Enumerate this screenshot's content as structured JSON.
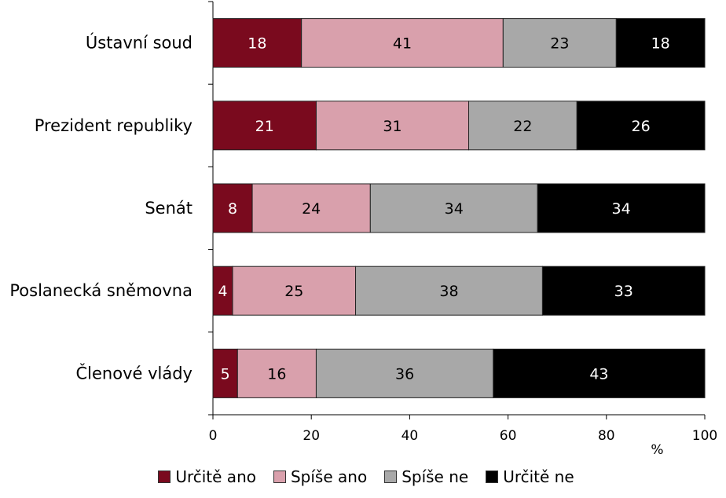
{
  "chart_data": {
    "type": "bar",
    "orientation": "horizontal",
    "stacked": true,
    "categories": [
      "Ústavní soud",
      "Prezident republiky",
      "Senát",
      "Poslanecká sněmovna",
      "Členové vlády"
    ],
    "series": [
      {
        "name": "Určitě ano",
        "color": "#7a0a1e",
        "label_color": "#ffffff",
        "values": [
          18,
          21,
          8,
          4,
          5
        ]
      },
      {
        "name": "Spíše ano",
        "color": "#d9a0ac",
        "label_color": "#000000",
        "values": [
          41,
          31,
          24,
          25,
          16
        ]
      },
      {
        "name": "Spíše ne",
        "color": "#a8a8a8",
        "label_color": "#000000",
        "values": [
          23,
          22,
          34,
          38,
          36
        ]
      },
      {
        "name": "Určitě ne",
        "color": "#000000",
        "label_color": "#ffffff",
        "values": [
          18,
          26,
          34,
          33,
          43
        ]
      }
    ],
    "xlim": [
      0,
      100
    ],
    "xticks": [
      "0",
      "20",
      "40",
      "60",
      "80",
      "100"
    ],
    "xunit": "%",
    "legend_position": "bottom",
    "grid": false
  }
}
